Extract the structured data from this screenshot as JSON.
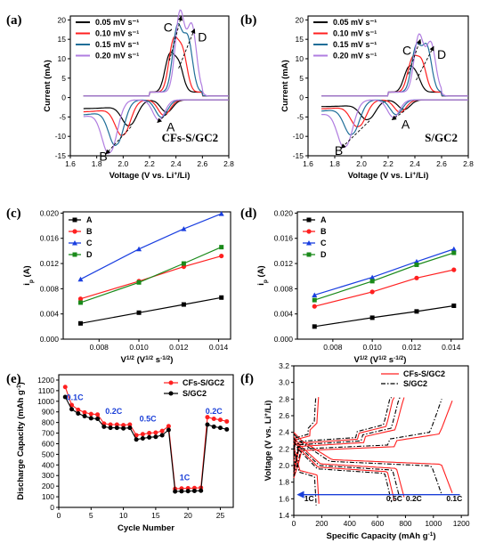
{
  "panels": [
    {
      "id": "a",
      "label": "(a)",
      "type": "cv",
      "xlabel": "Voltage (V vs. Li",
      "xlabel_sup": "+",
      "xlabel_end": "/Li)",
      "ylabel": "Current (mA)",
      "xlim": [
        1.6,
        2.8
      ],
      "ylim": [
        -15,
        21
      ],
      "xticks": [
        "1.6",
        "1.8",
        "2.0",
        "2.2",
        "2.4",
        "2.6",
        "2.8"
      ],
      "yticks": [
        "-15",
        "-10",
        "-5",
        "0",
        "5",
        "10",
        "15",
        "20"
      ],
      "sample": "CFs-S/GC2",
      "legend": [
        "0.05 mV s⁻¹",
        "0.10 mV s⁻¹",
        "0.15 mV s⁻¹",
        "0.20 mV s⁻¹"
      ],
      "colors": [
        "#000000",
        "#ff2020",
        "#1f6e98",
        "#b07de0"
      ],
      "peaks": {
        "A": "A",
        "B": "B",
        "C": "C",
        "D": "D"
      },
      "cv": [
        {
          "r1": [
            2.33,
            -3.2
          ],
          "r2": [
            2.05,
            -6.5
          ],
          "o1": [
            2.35,
            9.0
          ],
          "o2": [
            2.42,
            7.0
          ]
        },
        {
          "r1": [
            2.31,
            -4.0
          ],
          "r2": [
            2.0,
            -9.0
          ],
          "o1": [
            2.38,
            12.5
          ],
          "o2": [
            2.45,
            10.0
          ]
        },
        {
          "r1": [
            2.29,
            -4.5
          ],
          "r2": [
            1.95,
            -11.5
          ],
          "o1": [
            2.41,
            16.5
          ],
          "o2": [
            2.49,
            13.5
          ]
        },
        {
          "r1": [
            2.27,
            -5.2
          ],
          "r2": [
            1.9,
            -13.5
          ],
          "o1": [
            2.43,
            20.5
          ],
          "o2": [
            2.52,
            17.0
          ]
        }
      ]
    },
    {
      "id": "b",
      "label": "(b)",
      "type": "cv",
      "xlabel": "Voltage (V vs. Li",
      "xlabel_sup": "+",
      "xlabel_end": "/Li)",
      "ylabel": "Current (mA)",
      "xlim": [
        1.6,
        2.8
      ],
      "ylim": [
        -15,
        21
      ],
      "xticks": [
        "1.6",
        "1.8",
        "2.0",
        "2.2",
        "2.4",
        "2.6",
        "2.8"
      ],
      "yticks": [
        "-15",
        "-10",
        "-5",
        "0",
        "5",
        "10",
        "15",
        "20"
      ],
      "sample": "S/GC2",
      "legend": [
        "0.05 mV s⁻¹",
        "0.10 mV s⁻¹",
        "0.15 mV s⁻¹",
        "0.20 mV s⁻¹"
      ],
      "colors": [
        "#000000",
        "#ff2020",
        "#1f6e98",
        "#b07de0"
      ],
      "peaks": {
        "A": "A",
        "B": "B",
        "C": "C",
        "D": "D"
      },
      "cv": [
        {
          "r1": [
            2.32,
            -2.5
          ],
          "r2": [
            2.05,
            -5.0
          ],
          "o1": [
            2.35,
            5.5
          ],
          "o2": [
            2.41,
            4.0
          ]
        },
        {
          "r1": [
            2.29,
            -3.2
          ],
          "r2": [
            1.98,
            -6.8
          ],
          "o1": [
            2.38,
            8.0
          ],
          "o2": [
            2.45,
            7.5
          ]
        },
        {
          "r1": [
            2.26,
            -3.8
          ],
          "r2": [
            1.93,
            -8.8
          ],
          "o1": [
            2.41,
            11.5
          ],
          "o2": [
            2.49,
            11.5
          ]
        },
        {
          "r1": [
            2.24,
            -4.5
          ],
          "r2": [
            1.88,
            -12.0
          ],
          "o1": [
            2.43,
            14.5
          ],
          "o2": [
            2.52,
            12.5
          ]
        }
      ]
    },
    {
      "id": "c",
      "label": "(c)",
      "type": "line",
      "xlabel": "V",
      "xlabel_sup1": "1/2",
      "xlabel_mid": " (V",
      "xlabel_sup2": "1/2",
      "xlabel_mid2": " s",
      "xlabel_sup3": "-1/2",
      "xlabel_end": ")",
      "ylabel": "i",
      "ylabel_sub": "p",
      "ylabel_end": " (A)",
      "xlim": [
        0.0062,
        0.0146
      ],
      "ylim": [
        0.0,
        0.0202
      ],
      "xticks": [
        "0.008",
        "0.010",
        "0.012",
        "0.014"
      ],
      "yticks": [
        "0.000",
        "0.004",
        "0.008",
        "0.012",
        "0.016",
        "0.020"
      ],
      "x": [
        0.00707,
        0.01,
        0.01225,
        0.01414
      ],
      "series": [
        {
          "name": "A",
          "color": "#000000",
          "values": [
            0.0025,
            0.0042,
            0.0055,
            0.0066
          ]
        },
        {
          "name": "B",
          "color": "#ff2020",
          "values": [
            0.0064,
            0.0092,
            0.0115,
            0.0132
          ]
        },
        {
          "name": "C",
          "color": "#1a3fe0",
          "values": [
            0.0095,
            0.0143,
            0.0175,
            0.0199
          ]
        },
        {
          "name": "D",
          "color": "#1a8a1a",
          "values": [
            0.0058,
            0.009,
            0.012,
            0.0146
          ]
        }
      ]
    },
    {
      "id": "d",
      "label": "(d)",
      "type": "line",
      "xlabel": "V",
      "xlabel_sup1": "1/2",
      "xlabel_mid": " (V",
      "xlabel_sup2": "1/2",
      "xlabel_mid2": " s",
      "xlabel_sup3": "-1/2",
      "xlabel_end": ")",
      "ylabel": "i",
      "ylabel_sub": "p",
      "ylabel_end": " (A)",
      "xlim": [
        0.0062,
        0.0146
      ],
      "ylim": [
        0.0,
        0.0202
      ],
      "xticks": [
        "0.008",
        "0.010",
        "0.012",
        "0.014"
      ],
      "yticks": [
        "0.000",
        "0.004",
        "0.008",
        "0.012",
        "0.016",
        "0.020"
      ],
      "x": [
        0.00707,
        0.01,
        0.01225,
        0.01414
      ],
      "series": [
        {
          "name": "A",
          "color": "#000000",
          "values": [
            0.002,
            0.0034,
            0.0044,
            0.0053
          ]
        },
        {
          "name": "B",
          "color": "#ff2020",
          "values": [
            0.0052,
            0.0075,
            0.0097,
            0.011
          ]
        },
        {
          "name": "C",
          "color": "#1a3fe0",
          "values": [
            0.007,
            0.0098,
            0.0123,
            0.0143
          ]
        },
        {
          "name": "D",
          "color": "#1a8a1a",
          "values": [
            0.0062,
            0.0092,
            0.0118,
            0.0137
          ]
        }
      ]
    },
    {
      "id": "e",
      "label": "(e)",
      "type": "rate",
      "xlabel": "Cycle Number",
      "ylabel": "Discharge Capacity (mAh g",
      "ylabel_sup": "-1",
      "ylabel_end": ")",
      "xlim": [
        0,
        27
      ],
      "ylim": [
        0,
        1250
      ],
      "xticks": [
        "0",
        "5",
        "10",
        "15",
        "20",
        "25"
      ],
      "yticks": [
        "0",
        "100",
        "200",
        "300",
        "400",
        "500",
        "600",
        "700",
        "800",
        "900",
        "1000",
        "1100",
        "1200"
      ],
      "rate_labels": [
        "0.1C",
        "0.2C",
        "0.5C",
        "1C",
        "0.2C"
      ],
      "series": [
        {
          "name": "CFs-S/GC2",
          "color": "#ff2020",
          "values": [
            1135,
            965,
            920,
            895,
            880,
            875,
            790,
            780,
            780,
            775,
            780,
            680,
            690,
            700,
            705,
            720,
            765,
            175,
            178,
            180,
            182,
            185,
            850,
            835,
            825,
            810
          ]
        },
        {
          "name": "S/GC2",
          "color": "#000000",
          "values": [
            1040,
            925,
            885,
            860,
            840,
            835,
            760,
            750,
            750,
            745,
            750,
            640,
            650,
            660,
            665,
            680,
            730,
            150,
            152,
            153,
            155,
            157,
            780,
            760,
            750,
            735
          ]
        }
      ]
    },
    {
      "id": "f",
      "label": "(f)",
      "type": "gcd",
      "xlabel": "Specific Capacity (mAh g",
      "xlabel_sup": "-1",
      "xlabel_end": ")",
      "ylabel": "Voltage (V vs. Li",
      "ylabel_sup": "+",
      "ylabel_end": "/Li)",
      "xlim": [
        0,
        1250
      ],
      "ylim": [
        1.4,
        3.2
      ],
      "xticks": [
        "0",
        "200",
        "400",
        "600",
        "800",
        "1000",
        "1200"
      ],
      "yticks": [
        "1.4",
        "1.6",
        "1.8",
        "2.0",
        "2.2",
        "2.4",
        "2.6",
        "2.8",
        "3.0",
        "3.2"
      ],
      "legend": [
        "CFs-S/GC2",
        "S/GC2"
      ],
      "colors": [
        "#ff2020",
        "#000000"
      ],
      "rate_labels": [
        "1C",
        "0.5C",
        "0.2C",
        "0.1C"
      ],
      "caps": {
        "cfs": [
          1135,
          790,
          720,
          180
        ],
        "sgc": [
          1060,
          760,
          700,
          160
        ]
      }
    }
  ]
}
